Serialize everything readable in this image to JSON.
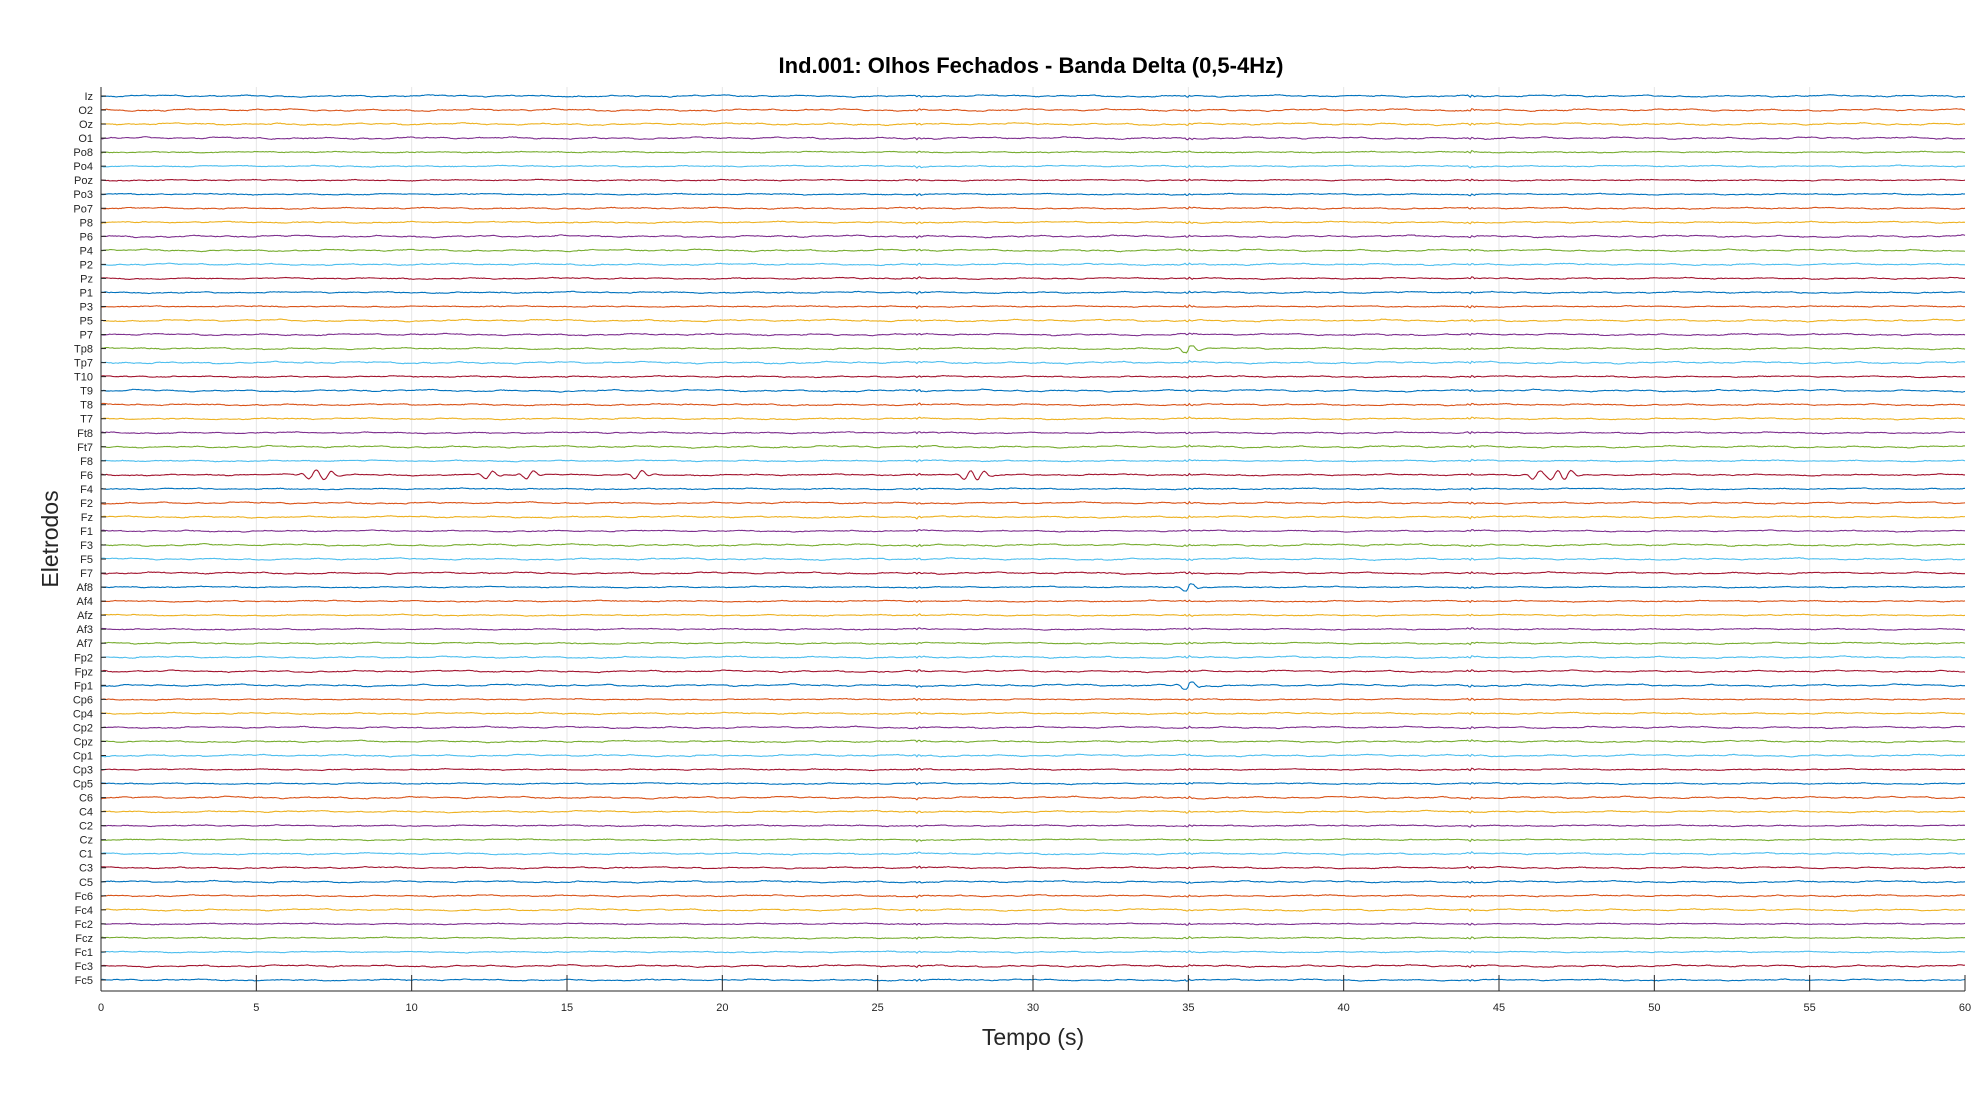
{
  "chart_data": {
    "type": "line",
    "title": "Ind.001: Olhos Fechados - Banda Delta (0,5-4Hz)",
    "xlabel": "Tempo (s)",
    "ylabel": "Eletrodos",
    "xlim": [
      0,
      60
    ],
    "xticks": [
      0,
      5,
      10,
      15,
      20,
      25,
      30,
      35,
      40,
      45,
      50,
      55,
      60
    ],
    "xtick_labels": [
      "0",
      "5",
      "10",
      "15",
      "20",
      "25",
      "30",
      "35",
      "40",
      "45",
      "50",
      "55",
      "60"
    ],
    "grid": "x",
    "legend": "none",
    "channels_top_to_bottom": [
      "Iz",
      "O2",
      "Oz",
      "O1",
      "Po8",
      "Po4",
      "Poz",
      "Po3",
      "Po7",
      "P8",
      "P6",
      "P4",
      "P2",
      "Pz",
      "P1",
      "P3",
      "P5",
      "P7",
      "Tp8",
      "Tp7",
      "T10",
      "T9",
      "T8",
      "T7",
      "Ft8",
      "Ft7",
      "F8",
      "F6",
      "F4",
      "F2",
      "Fz",
      "F1",
      "F3",
      "F5",
      "F7",
      "Af8",
      "Af4",
      "Afz",
      "Af3",
      "Af7",
      "Fp2",
      "Fpz",
      "Fp1",
      "Cp6",
      "Cp4",
      "Cp2",
      "Cpz",
      "Cp1",
      "Cp3",
      "Cp5",
      "C6",
      "C4",
      "C2",
      "Cz",
      "C1",
      "C3",
      "C5",
      "Fc6",
      "Fc4",
      "Fc2",
      "Fcz",
      "Fc1",
      "Fc3",
      "Fc5"
    ],
    "series_colors_cycle": [
      "#0072bd",
      "#d95319",
      "#edb120",
      "#7e2f8e",
      "#77ac30",
      "#4dbeee",
      "#a2142f"
    ],
    "events_at_time": [
      26.3,
      35,
      44.1
    ],
    "notable_activity": {
      "F6": [
        6.8,
        7.3,
        12.5,
        13.8,
        17.3,
        27.9,
        28.3,
        46.2,
        46.8,
        47.2
      ],
      "Tp8": [
        35
      ],
      "Af8": [
        35
      ],
      "Fp1": [
        35
      ]
    }
  }
}
